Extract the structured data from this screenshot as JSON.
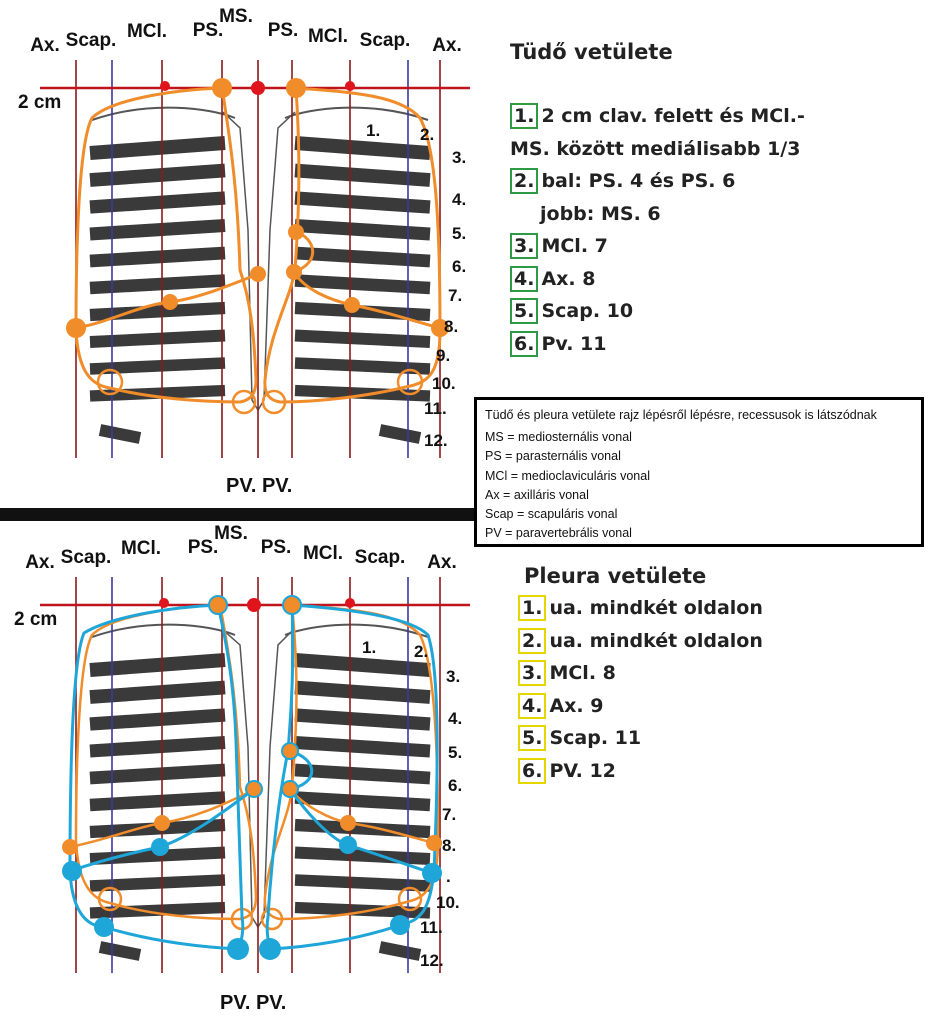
{
  "lung": {
    "title": "Tüdő vetülete",
    "top_labels": [
      "Ax.",
      "Scap.",
      "MCl.",
      "PS.",
      "MS.",
      "PS.",
      "MCl.",
      "Scap.",
      "Ax."
    ],
    "level_label": "2 cm",
    "rib_labels": [
      "1.",
      "2.",
      "3.",
      "4.",
      "5.",
      "6.",
      "7.",
      "8.",
      "9.",
      "10.",
      "11.",
      "12."
    ],
    "bottom_label": "PV. PV.",
    "legend": [
      {
        "num": "1.",
        "text": "2 cm clav. felett és MCl.-"
      },
      {
        "num": "",
        "text": "MS. között mediálisabb 1/3"
      },
      {
        "num": "2.",
        "text": "bal: PS. 4 és PS. 6"
      },
      {
        "num": "",
        "text": "jobb: MS. 6"
      },
      {
        "num": "3.",
        "text": "MCl. 7"
      },
      {
        "num": "4.",
        "text": "Ax. 8"
      },
      {
        "num": "5.",
        "text": "Scap. 10"
      },
      {
        "num": "6.",
        "text": "Pv. 11"
      }
    ]
  },
  "pleura": {
    "title": "Pleura vetülete",
    "top_labels": [
      "Ax.",
      "Scap.",
      "MCl.",
      "PS.",
      "MS.",
      "PS.",
      "MCl.",
      "Scap.",
      "Ax."
    ],
    "level_label": "2 cm",
    "rib_labels": [
      "1.",
      "2.",
      "3.",
      "4.",
      "5.",
      "6.",
      "7.",
      "8.",
      ".",
      "10.",
      "11.",
      "12."
    ],
    "bottom_label": "PV. PV.",
    "legend": [
      {
        "num": "1.",
        "text": "ua. mindkét oldalon"
      },
      {
        "num": "2.",
        "text": "ua. mindkét oldalon"
      },
      {
        "num": "3.",
        "text": "MCl. 8"
      },
      {
        "num": "4.",
        "text": "Ax. 9"
      },
      {
        "num": "5.",
        "text": "Scap. 11"
      },
      {
        "num": "6.",
        "text": "PV. 12"
      }
    ]
  },
  "info": {
    "caption": "Tüdő és pleura vetülete rajz lépésről lépésre, recessusok is látszódnak",
    "abbreviations": [
      "MS = mediosternális vonal",
      "PS = parasternális vonal",
      "MCl = medioclaviculáris vonal",
      "Ax = axilláris vonal",
      "Scap = scapuláris vonal",
      "PV = paravertebrális vonal"
    ]
  },
  "colors": {
    "lung_outline": "#f08c2a",
    "pleura_outline": "#1fa6d9",
    "vertical_lines": "#8b1a1a",
    "scap_lines": "#3a3aa0",
    "level_line": "#c0141c",
    "ribs": "#3a3a3a",
    "lung_legend_box": "#2e9a43",
    "pleura_legend_box": "#e6d600"
  }
}
